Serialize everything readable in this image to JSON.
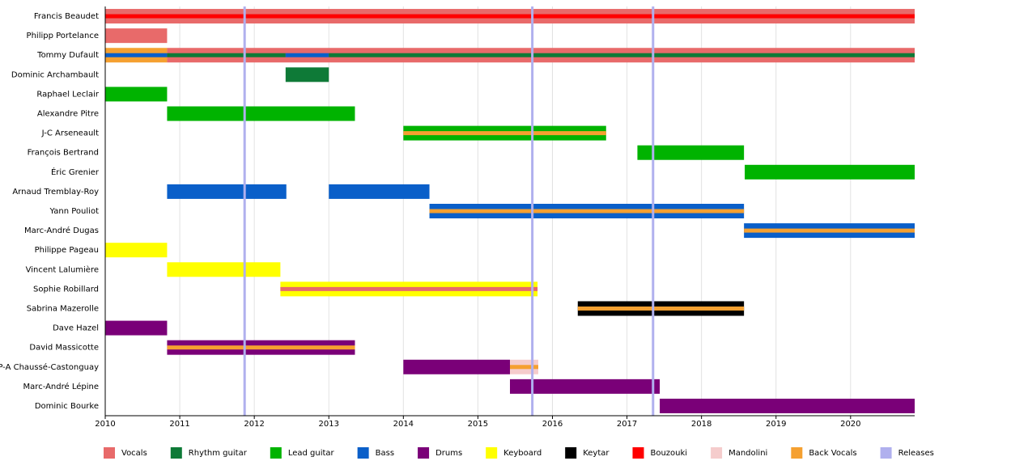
{
  "chart_data": {
    "type": "timeline",
    "xlim": [
      2010,
      2020.86
    ],
    "xticks": [
      2010,
      2011,
      2012,
      2013,
      2014,
      2015,
      2016,
      2017,
      2018,
      2019,
      2020
    ],
    "grid": true,
    "legend": "bottom",
    "roles": [
      {
        "name": "Vocals",
        "color": "#e86a6a"
      },
      {
        "name": "Rhythm guitar",
        "color": "#0e7a37"
      },
      {
        "name": "Lead guitar",
        "color": "#00b300"
      },
      {
        "name": "Bass",
        "color": "#0a5fc9"
      },
      {
        "name": "Drums",
        "color": "#7a0078"
      },
      {
        "name": "Keyboard",
        "color": "#ffff00"
      },
      {
        "name": "Keytar",
        "color": "#000000"
      },
      {
        "name": "Bouzouki",
        "color": "#ff0000"
      },
      {
        "name": "Mandolini",
        "color": "#f5cccc"
      },
      {
        "name": "Back Vocals",
        "color": "#f5a030"
      },
      {
        "name": "Releases",
        "color": "#b0b0ee"
      }
    ],
    "releases": [
      2011.87,
      2015.73,
      2017.35
    ],
    "rows": [
      {
        "name": "Francis Beaudet",
        "bars": [
          {
            "role": "Vocals",
            "start": 2010,
            "end": 2020.86
          }
        ],
        "stripes": [
          {
            "role": "Bouzouki",
            "start": 2010,
            "end": 2020.86
          }
        ]
      },
      {
        "name": "Philipp Portelance",
        "bars": [
          {
            "role": "Vocals",
            "start": 2010,
            "end": 2010.83
          }
        ],
        "stripes": []
      },
      {
        "name": "Tommy Dufault",
        "bars": [
          {
            "role": "Back Vocals",
            "start": 2010,
            "end": 2010.83
          },
          {
            "role": "Vocals",
            "start": 2010.83,
            "end": 2020.86
          }
        ],
        "stripes": [
          {
            "role": "Bass",
            "start": 2010,
            "end": 2010.83
          },
          {
            "role": "Rhythm guitar",
            "start": 2010.83,
            "end": 2012.42
          },
          {
            "role": "Bass",
            "start": 2012.42,
            "end": 2013.0
          },
          {
            "role": "Rhythm guitar",
            "start": 2013.0,
            "end": 2020.86
          }
        ]
      },
      {
        "name": "Dominic Archambault",
        "bars": [
          {
            "role": "Rhythm guitar",
            "start": 2012.42,
            "end": 2013.0
          }
        ],
        "stripes": []
      },
      {
        "name": "Raphael Leclair",
        "bars": [
          {
            "role": "Lead guitar",
            "start": 2010,
            "end": 2010.83
          }
        ],
        "stripes": []
      },
      {
        "name": "Alexandre Pitre",
        "bars": [
          {
            "role": "Lead guitar",
            "start": 2010.83,
            "end": 2013.35
          }
        ],
        "stripes": []
      },
      {
        "name": "J-C Arseneault",
        "bars": [
          {
            "role": "Lead guitar",
            "start": 2014.0,
            "end": 2016.72
          }
        ],
        "stripes": [
          {
            "role": "Back Vocals",
            "start": 2014.0,
            "end": 2016.72
          }
        ]
      },
      {
        "name": "François Bertrand",
        "bars": [
          {
            "role": "Lead guitar",
            "start": 2017.14,
            "end": 2018.57
          }
        ],
        "stripes": []
      },
      {
        "name": "Éric Grenier",
        "bars": [
          {
            "role": "Lead guitar",
            "start": 2018.58,
            "end": 2020.86
          }
        ],
        "stripes": []
      },
      {
        "name": "Arnaud Tremblay-Roy",
        "bars": [
          {
            "role": "Bass",
            "start": 2010.83,
            "end": 2012.43
          },
          {
            "role": "Bass",
            "start": 2013.0,
            "end": 2014.35
          }
        ],
        "stripes": []
      },
      {
        "name": "Yann Pouliot",
        "bars": [
          {
            "role": "Bass",
            "start": 2014.35,
            "end": 2018.57
          }
        ],
        "stripes": [
          {
            "role": "Back Vocals",
            "start": 2014.35,
            "end": 2018.57
          }
        ]
      },
      {
        "name": "Marc-André Dugas",
        "bars": [
          {
            "role": "Bass",
            "start": 2018.57,
            "end": 2020.86
          }
        ],
        "stripes": [
          {
            "role": "Back Vocals",
            "start": 2018.57,
            "end": 2020.86
          }
        ]
      },
      {
        "name": "Philippe Pageau",
        "bars": [
          {
            "role": "Keyboard",
            "start": 2010,
            "end": 2010.83
          }
        ],
        "stripes": []
      },
      {
        "name": "Vincent Lalumière",
        "bars": [
          {
            "role": "Keyboard",
            "start": 2010.83,
            "end": 2012.35
          }
        ],
        "stripes": []
      },
      {
        "name": "Sophie Robillard",
        "bars": [
          {
            "role": "Keyboard",
            "start": 2012.35,
            "end": 2015.8
          }
        ],
        "stripes": [
          {
            "role": "Vocals",
            "start": 2012.35,
            "end": 2015.8
          }
        ]
      },
      {
        "name": "Sabrina Mazerolle",
        "bars": [
          {
            "role": "Keytar",
            "start": 2016.34,
            "end": 2018.57
          }
        ],
        "stripes": [
          {
            "role": "Back Vocals",
            "start": 2016.34,
            "end": 2018.57
          }
        ]
      },
      {
        "name": "Dave Hazel",
        "bars": [
          {
            "role": "Drums",
            "start": 2010,
            "end": 2010.83
          }
        ],
        "stripes": []
      },
      {
        "name": "David Massicotte",
        "bars": [
          {
            "role": "Drums",
            "start": 2010.83,
            "end": 2013.35
          }
        ],
        "stripes": [
          {
            "role": "Back Vocals",
            "start": 2010.83,
            "end": 2013.35
          }
        ]
      },
      {
        "name": "P-A Chaussé-Castonguay",
        "bars": [
          {
            "role": "Drums",
            "start": 2014.0,
            "end": 2015.43
          },
          {
            "role": "Mandolini",
            "start": 2015.43,
            "end": 2015.81
          }
        ],
        "stripes": [
          {
            "role": "Back Vocals",
            "start": 2015.43,
            "end": 2015.81
          }
        ]
      },
      {
        "name": "Marc-André Lépine",
        "bars": [
          {
            "role": "Drums",
            "start": 2015.43,
            "end": 2017.44
          }
        ],
        "stripes": []
      },
      {
        "name": "Dominic Bourke",
        "bars": [
          {
            "role": "Drums",
            "start": 2017.44,
            "end": 2020.86
          }
        ],
        "stripes": []
      }
    ]
  }
}
